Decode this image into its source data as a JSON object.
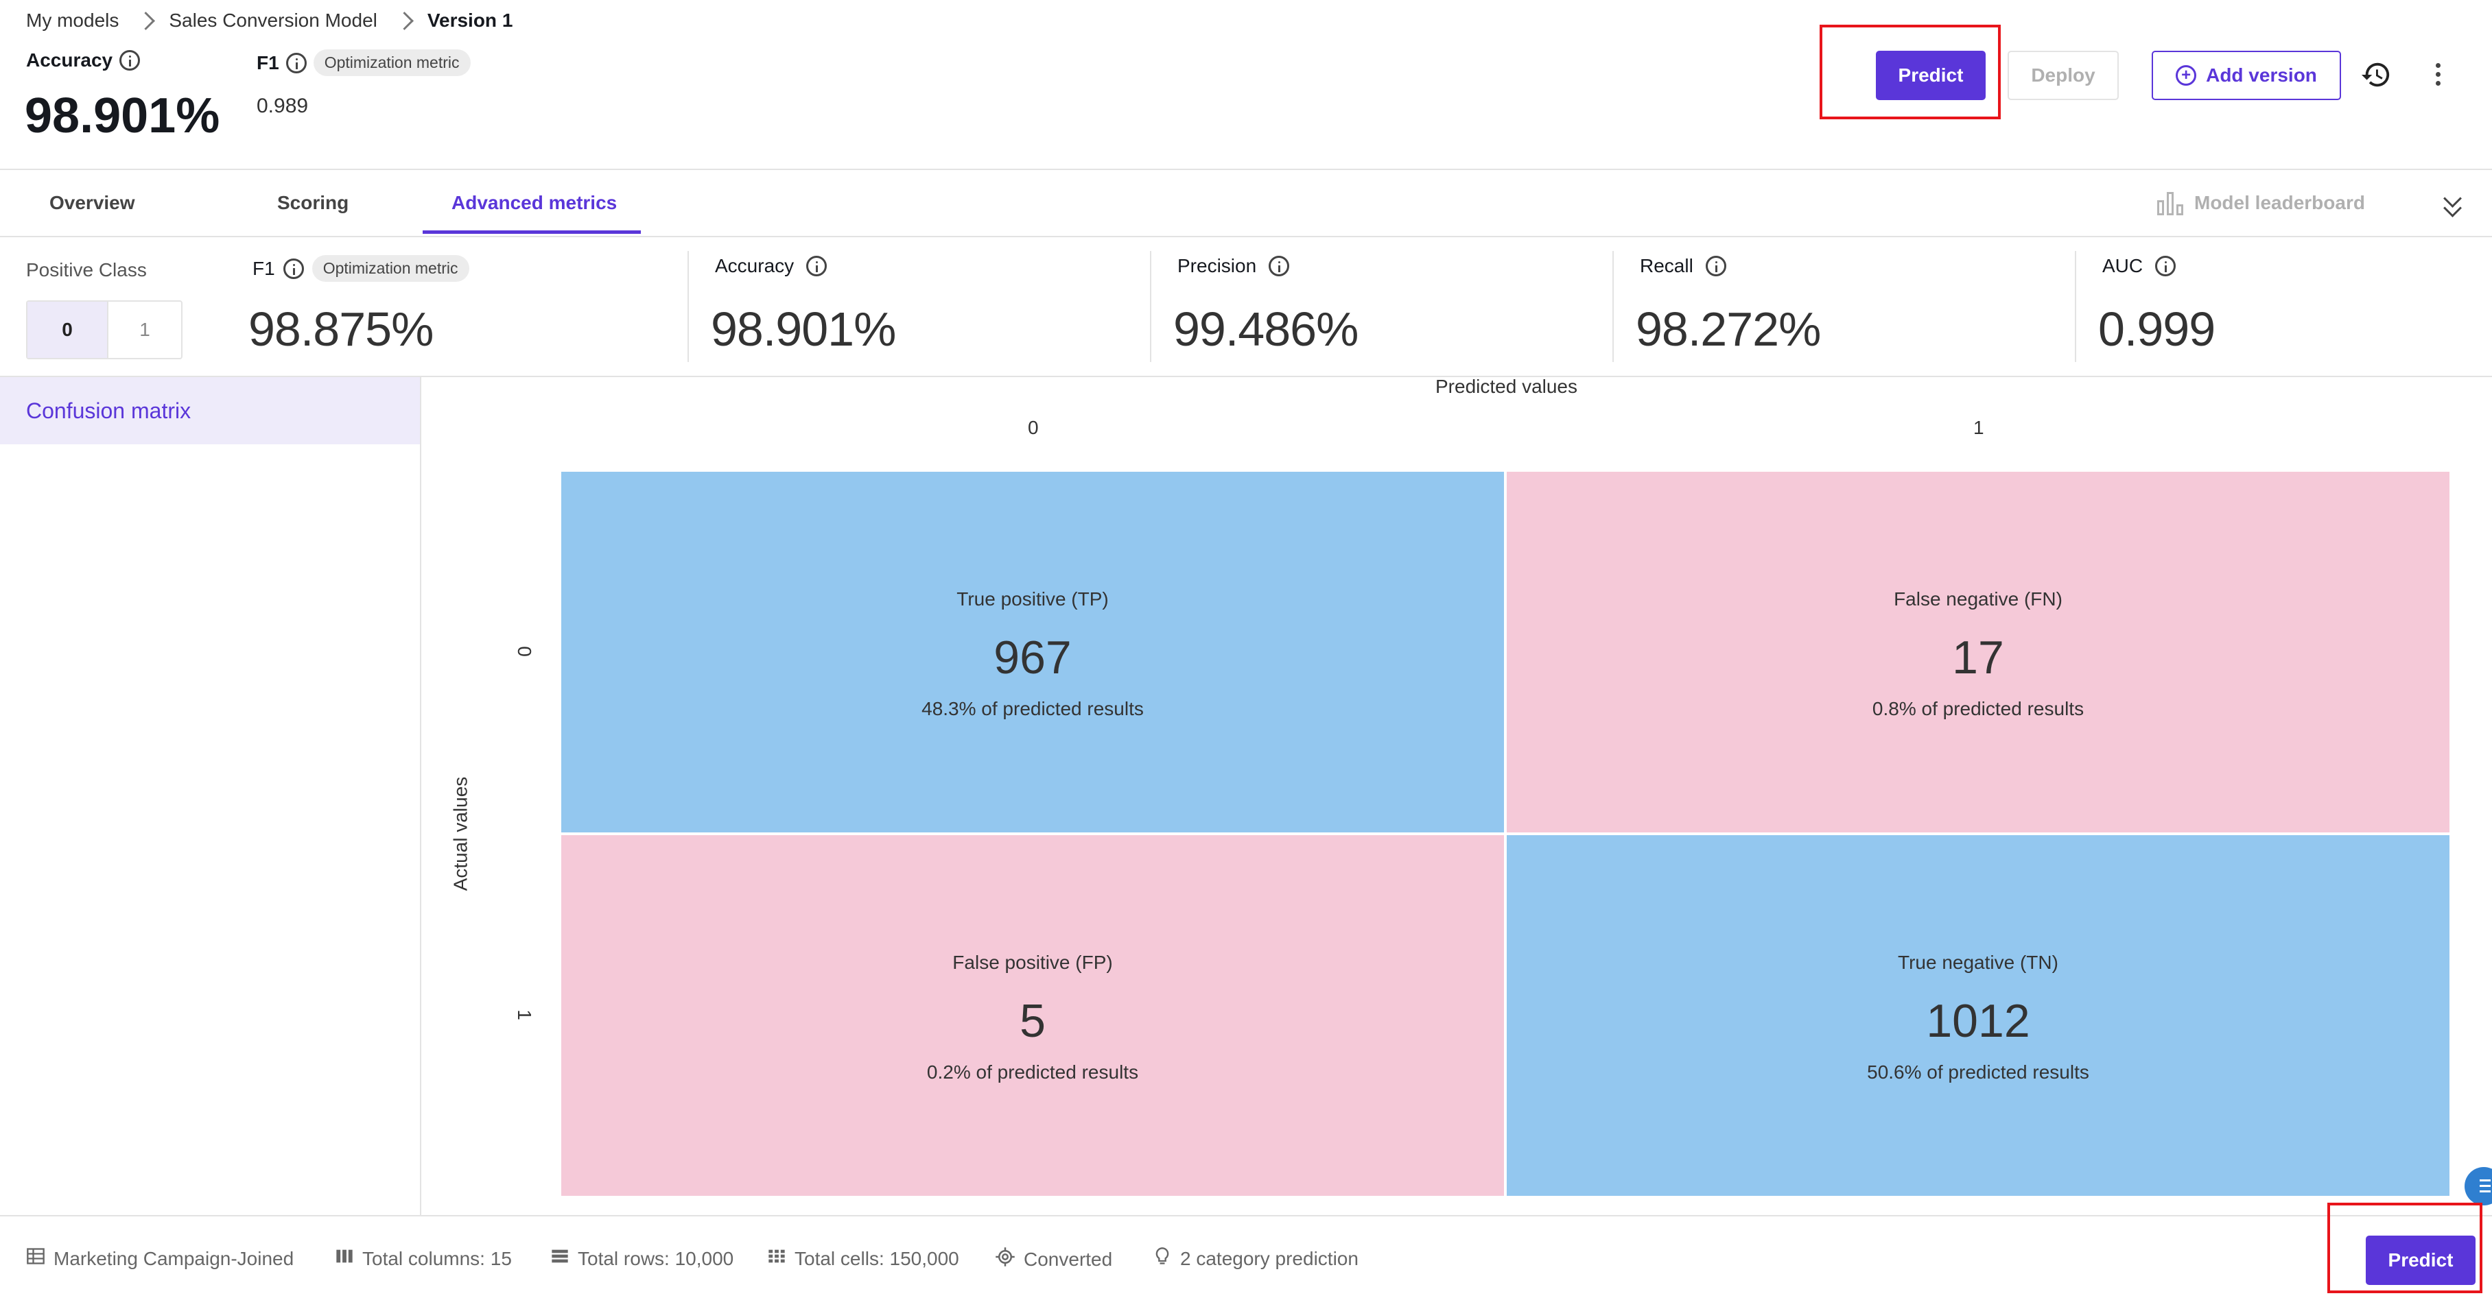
{
  "breadcrumb": {
    "items": [
      "My models",
      "Sales Conversion Model"
    ],
    "current": "Version 1"
  },
  "header": {
    "accuracy_label": "Accuracy",
    "accuracy_value": "98.901%",
    "f1_label": "F1",
    "f1_badge": "Optimization metric",
    "f1_value": "0.989",
    "predict_label": "Predict",
    "deploy_label": "Deploy",
    "add_version_label": "Add version"
  },
  "tabs": [
    {
      "label": "Overview"
    },
    {
      "label": "Scoring"
    },
    {
      "label": "Advanced metrics",
      "active": true
    }
  ],
  "leaderboard_label": "Model leaderboard",
  "metrics": {
    "positive_class_label": "Positive Class",
    "class_options": [
      "0",
      "1"
    ],
    "selected_class": "0",
    "f1": {
      "label": "F1",
      "badge": "Optimization metric",
      "value": "98.875%"
    },
    "accuracy": {
      "label": "Accuracy",
      "value": "98.901%"
    },
    "precision": {
      "label": "Precision",
      "value": "99.486%"
    },
    "recall": {
      "label": "Recall",
      "value": "98.272%"
    },
    "auc": {
      "label": "AUC",
      "value": "0.999"
    }
  },
  "sidebar": {
    "items": [
      {
        "label": "Confusion matrix",
        "active": true
      }
    ]
  },
  "matrix": {
    "predicted_label": "Predicted values",
    "actual_label": "Actual values",
    "col_headers": [
      "0",
      "1"
    ],
    "row_headers": [
      "0",
      "1"
    ],
    "cells": [
      {
        "title": "True positive (TP)",
        "value": "967",
        "pct": "48.3% of predicted results",
        "color": "#93c7ef"
      },
      {
        "title": "False negative (FN)",
        "value": "17",
        "pct": "0.8% of predicted results",
        "color": "#f5c9d8"
      },
      {
        "title": "False positive (FP)",
        "value": "5",
        "pct": "0.2% of predicted results",
        "color": "#f5c9d8"
      },
      {
        "title": "True negative (TN)",
        "value": "1012",
        "pct": "50.6% of predicted results",
        "color": "#93c7ef"
      }
    ]
  },
  "footer": {
    "dataset": "Marketing Campaign-Joined",
    "columns": "Total columns: 15",
    "rows": "Total rows: 10,000",
    "cells": "Total cells: 150,000",
    "target": "Converted",
    "prediction_type": "2 category prediction",
    "predict_label": "Predict"
  },
  "colors": {
    "accent": "#5a36d9",
    "highlight_box": "#e8151b"
  }
}
